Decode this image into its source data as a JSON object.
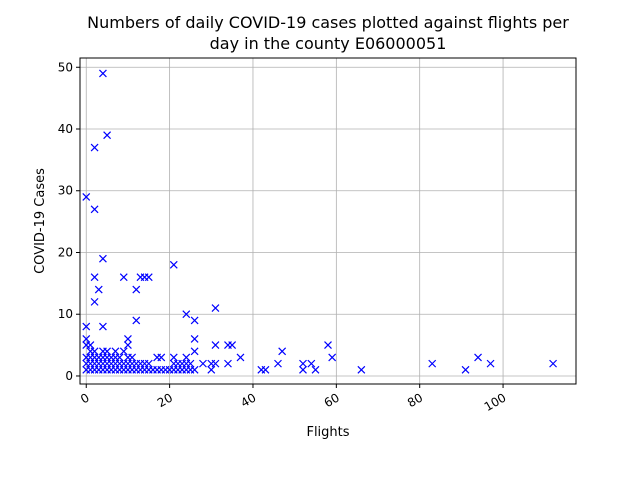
{
  "chart_data": {
    "type": "scatter",
    "title_lines": [
      "Numbers of daily COVID-19 cases plotted against flights per",
      "day in the county E06000051"
    ],
    "xlabel": "Flights",
    "ylabel": "COVID-19 Cases",
    "xlim": [
      -1.5,
      117.5
    ],
    "ylim": [
      -1.3,
      51.5
    ],
    "xticks": [
      0,
      20,
      40,
      60,
      80,
      100
    ],
    "yticks": [
      0,
      10,
      20,
      30,
      40,
      50
    ],
    "xtick_rotation": 30,
    "grid": true,
    "marker": "x",
    "color": "#0000ff",
    "points": [
      [
        0,
        29
      ],
      [
        2,
        37
      ],
      [
        2,
        27
      ],
      [
        4,
        49
      ],
      [
        5,
        39
      ],
      [
        4,
        19
      ],
      [
        2,
        16
      ],
      [
        3,
        14
      ],
      [
        2,
        12
      ],
      [
        4,
        8
      ],
      [
        0,
        8
      ],
      [
        0,
        6
      ],
      [
        0,
        5
      ],
      [
        1,
        5
      ],
      [
        1,
        4
      ],
      [
        2,
        4
      ],
      [
        0,
        3
      ],
      [
        0,
        2
      ],
      [
        0,
        1
      ],
      [
        1,
        3
      ],
      [
        1,
        2
      ],
      [
        1,
        1
      ],
      [
        2,
        3
      ],
      [
        2,
        2
      ],
      [
        2,
        1
      ],
      [
        3,
        3
      ],
      [
        3,
        2
      ],
      [
        3,
        1
      ],
      [
        4,
        4
      ],
      [
        4,
        3
      ],
      [
        4,
        2
      ],
      [
        4,
        1
      ],
      [
        5,
        4
      ],
      [
        5,
        3
      ],
      [
        5,
        2
      ],
      [
        5,
        1
      ],
      [
        6,
        3
      ],
      [
        6,
        2
      ],
      [
        6,
        1
      ],
      [
        7,
        4
      ],
      [
        7,
        3
      ],
      [
        7,
        2
      ],
      [
        7,
        1
      ],
      [
        8,
        3
      ],
      [
        8,
        2
      ],
      [
        8,
        1
      ],
      [
        9,
        4
      ],
      [
        9,
        2
      ],
      [
        9,
        1
      ],
      [
        9,
        16
      ],
      [
        10,
        6
      ],
      [
        10,
        5
      ],
      [
        10,
        3
      ],
      [
        10,
        2
      ],
      [
        10,
        1
      ],
      [
        11,
        3
      ],
      [
        11,
        2
      ],
      [
        11,
        1
      ],
      [
        12,
        14
      ],
      [
        12,
        9
      ],
      [
        12,
        2
      ],
      [
        12,
        1
      ],
      [
        13,
        16
      ],
      [
        13,
        2
      ],
      [
        13,
        1
      ],
      [
        14,
        16
      ],
      [
        14,
        2
      ],
      [
        14,
        1
      ],
      [
        15,
        16
      ],
      [
        15,
        2
      ],
      [
        15,
        1
      ],
      [
        16,
        1
      ],
      [
        17,
        3
      ],
      [
        17,
        1
      ],
      [
        18,
        3
      ],
      [
        18,
        1
      ],
      [
        19,
        1
      ],
      [
        20,
        1
      ],
      [
        21,
        18
      ],
      [
        21,
        3
      ],
      [
        21,
        2
      ],
      [
        21,
        1
      ],
      [
        22,
        2
      ],
      [
        22,
        1
      ],
      [
        23,
        2
      ],
      [
        23,
        1
      ],
      [
        24,
        10
      ],
      [
        24,
        3
      ],
      [
        24,
        2
      ],
      [
        24,
        1
      ],
      [
        25,
        2
      ],
      [
        25,
        1
      ],
      [
        26,
        9
      ],
      [
        26,
        6
      ],
      [
        26,
        4
      ],
      [
        26,
        1
      ],
      [
        28,
        2
      ],
      [
        30,
        2
      ],
      [
        30,
        1
      ],
      [
        31,
        11
      ],
      [
        31,
        5
      ],
      [
        31,
        2
      ],
      [
        34,
        5
      ],
      [
        34,
        2
      ],
      [
        35,
        5
      ],
      [
        37,
        3
      ],
      [
        42,
        1
      ],
      [
        43,
        1
      ],
      [
        46,
        2
      ],
      [
        47,
        4
      ],
      [
        52,
        2
      ],
      [
        52,
        1
      ],
      [
        54,
        2
      ],
      [
        55,
        1
      ],
      [
        58,
        5
      ],
      [
        59,
        3
      ],
      [
        66,
        1
      ],
      [
        83,
        2
      ],
      [
        91,
        1
      ],
      [
        94,
        3
      ],
      [
        97,
        2
      ],
      [
        112,
        2
      ]
    ]
  }
}
